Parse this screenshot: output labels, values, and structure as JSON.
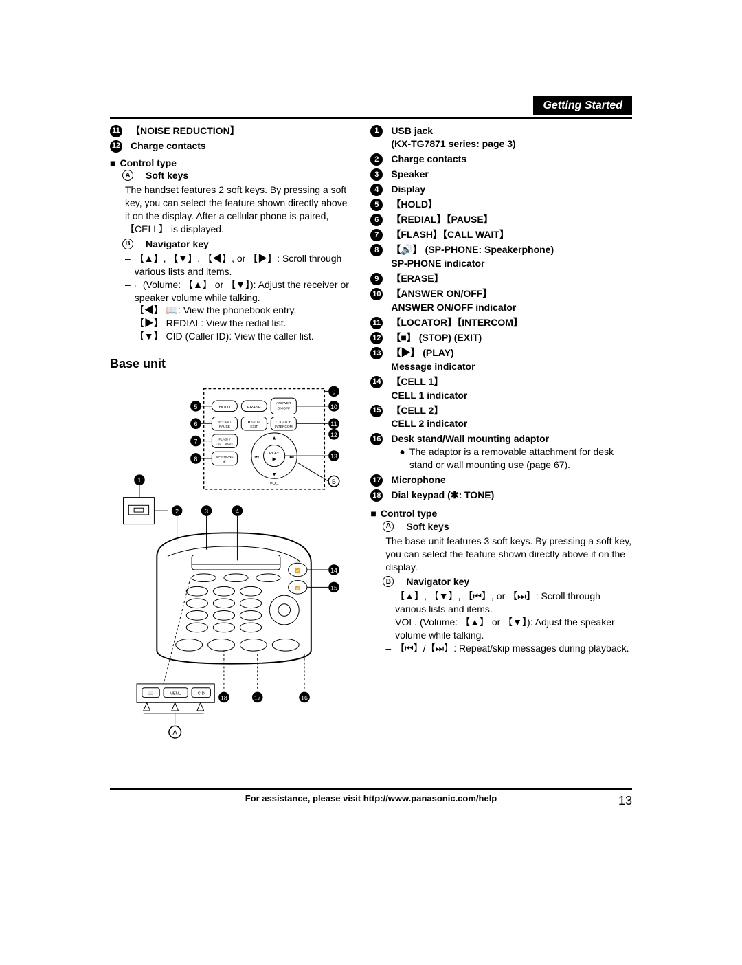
{
  "header": {
    "tab": "Getting Started"
  },
  "leftCol": {
    "item11": "【NOISE REDUCTION】",
    "item12": "Charge contacts",
    "controlType": "Control type",
    "softKeys": "Soft keys",
    "softKeysDesc": "The handset features 2 soft keys. By pressing a soft key, you can select the feature shown directly above it on the display. After a cellular phone is paired, 【CELL】 is displayed.",
    "navKey": "Navigator key",
    "nav1": "【▲】, 【▼】, 【◀】, or 【▶】: Scroll through various lists and items.",
    "nav2": "⌐ (Volume: 【▲】 or 【▼】): Adjust the receiver or speaker volume while talking.",
    "nav3": "【◀】 📖: View the phonebook entry.",
    "nav4": "【▶】 REDIAL: View the redial list.",
    "nav5": "【▼】 CID (Caller ID): View the caller list.",
    "baseUnit": "Base unit"
  },
  "rightCol": {
    "items": [
      {
        "n": "1",
        "main": "USB jack",
        "sub": "(KX-TG7871 series: page 3)"
      },
      {
        "n": "2",
        "main": "Charge contacts"
      },
      {
        "n": "3",
        "main": "Speaker"
      },
      {
        "n": "4",
        "main": "Display"
      },
      {
        "n": "5",
        "main": "【HOLD】"
      },
      {
        "n": "6",
        "main": "【REDIAL】【PAUSE】"
      },
      {
        "n": "7",
        "main": "【FLASH】【CALL WAIT】"
      },
      {
        "n": "8",
        "main": "【🔊】 (SP-PHONE: Speakerphone)",
        "sub": "SP-PHONE indicator"
      },
      {
        "n": "9",
        "main": "【ERASE】"
      },
      {
        "n": "10",
        "main": "【ANSWER ON/OFF】",
        "sub": "ANSWER ON/OFF indicator"
      },
      {
        "n": "11",
        "main": "【LOCATOR】【INTERCOM】"
      },
      {
        "n": "12",
        "main": "【■】 (STOP) (EXIT)"
      },
      {
        "n": "13",
        "main": "【▶】 (PLAY)",
        "sub": "Message indicator"
      },
      {
        "n": "14",
        "main": "【CELL 1】",
        "sub": "CELL 1 indicator"
      },
      {
        "n": "15",
        "main": "【CELL 2】",
        "sub": "CELL 2 indicator"
      },
      {
        "n": "16",
        "main": "Desk stand/Wall mounting adaptor",
        "bullet": "The adaptor is a removable attachment for desk stand or wall mounting use (page 67)."
      },
      {
        "n": "17",
        "main": "Microphone"
      },
      {
        "n": "18",
        "main": "Dial keypad (✱: TONE)"
      }
    ],
    "controlType": "Control type",
    "softKeys": "Soft keys",
    "softKeysDesc": "The base unit features 3 soft keys. By pressing a soft key, you can select the feature shown directly above it on the display.",
    "navKey": "Navigator key",
    "nav1": "【▲】, 【▼】, 【⏮】, or 【⏭】: Scroll through various lists and items.",
    "nav2": "VOL. (Volume: 【▲】 or 【▼】): Adjust the speaker volume while talking.",
    "nav3": "【⏮】/【⏭】: Repeat/skip messages during playback."
  },
  "footer": {
    "text": "For assistance, please visit http://www.panasonic.com/help",
    "page": "13"
  },
  "diagram": {
    "labels": {
      "hold": "HOLD",
      "erase": "ERASE",
      "answer": "ANSWER\nON / OFF",
      "redial": "REDIAL/\nPAUSE",
      "stop": "■ STOP\nEXIT",
      "locator": "LOCATOR\nINTERCOM",
      "flash": "FLASH/\nCALL WAIT",
      "play": "PLAY",
      "sp": "SP-PHONE",
      "vol": "VOL.",
      "menu": "MENU",
      "cid": "CID"
    }
  }
}
